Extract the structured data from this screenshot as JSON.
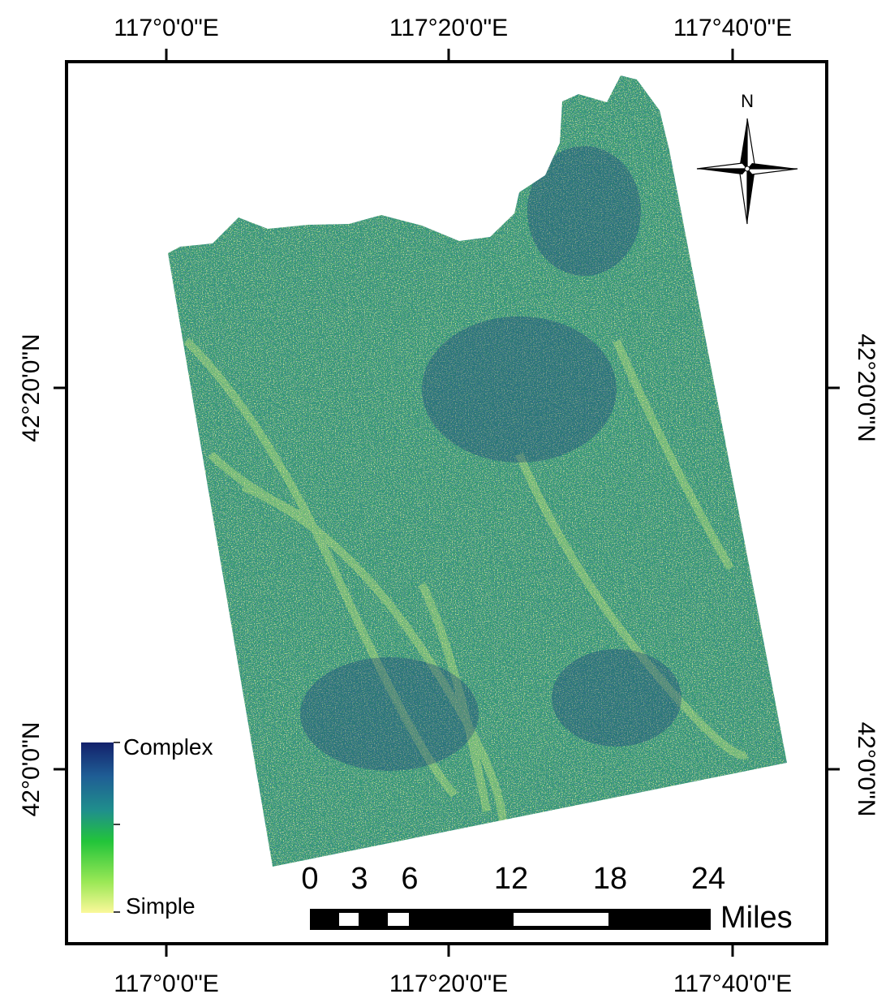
{
  "map": {
    "lon_labels": [
      "117°0'0\"E",
      "117°20'0\"E",
      "117°40'0\"E"
    ],
    "lat_labels": [
      "42°20'0\"N",
      "42°0'0\"N"
    ]
  },
  "north_arrow": {
    "label": "N",
    "icon": "north-arrow-icon"
  },
  "legend": {
    "high_label": "Complex",
    "low_label": "Simple",
    "colors": [
      "#13216b",
      "#1f5e95",
      "#1f8f8c",
      "#22c43a",
      "#9be856",
      "#fbf89a"
    ]
  },
  "scale_bar": {
    "ticks": [
      "0",
      "3",
      "6",
      "12",
      "18",
      "24"
    ],
    "unit": "Miles"
  }
}
